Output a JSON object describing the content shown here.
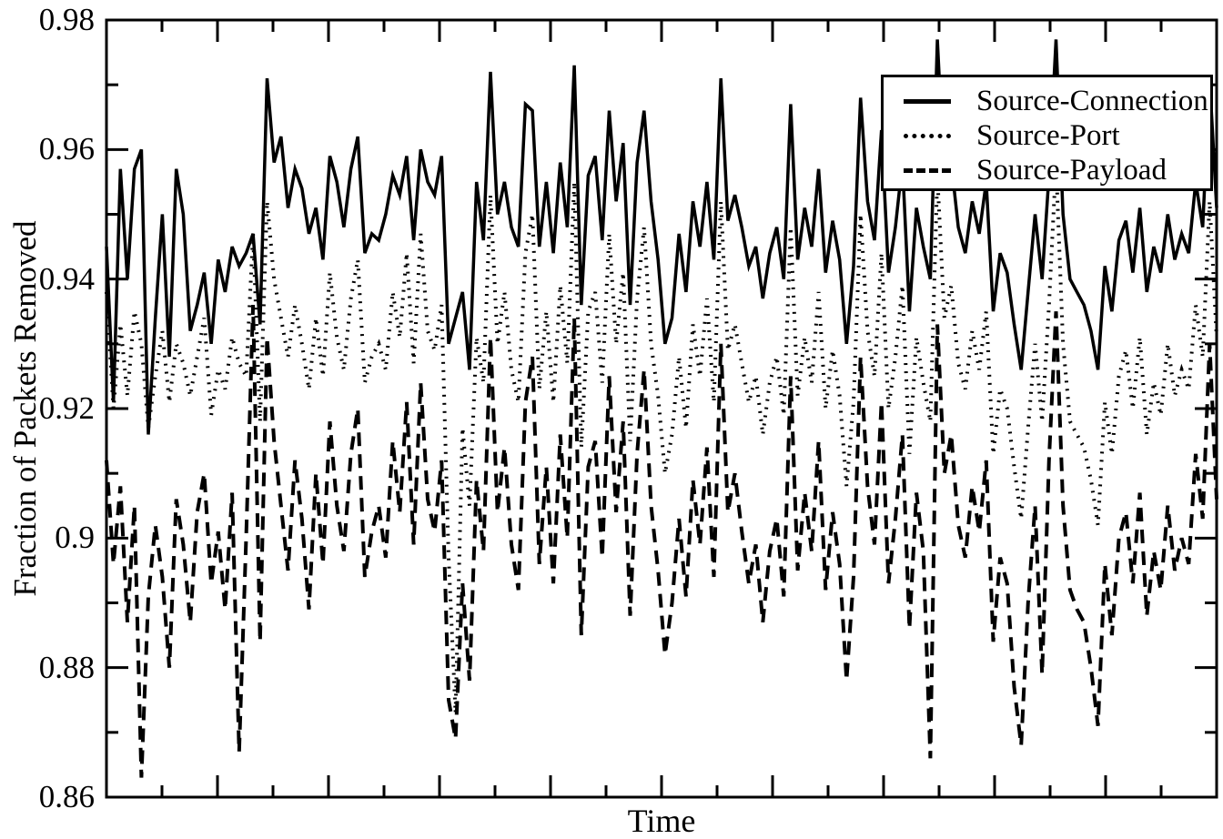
{
  "figure": {
    "background": "#ffffff",
    "ink": "#000000"
  },
  "axes": {
    "y_label": "Fraction of Packets Removed",
    "x_label": "Time",
    "y_tick_labels": [
      "0.98",
      "0.96",
      "0.94",
      "0.92",
      "0.9",
      "0.88",
      "0.86"
    ],
    "y_tick_values": [
      0.98,
      0.96,
      0.94,
      0.92,
      0.9,
      0.88,
      0.86
    ]
  },
  "legend": {
    "entries": [
      {
        "label": "Source-Connection",
        "style": "solid"
      },
      {
        "label": "Source-Port",
        "style": "dotted"
      },
      {
        "label": "Source-Payload",
        "style": "dashed"
      }
    ]
  },
  "chart_data": {
    "type": "line",
    "title": "",
    "xlabel": "Time",
    "ylabel": "Fraction of Packets Removed",
    "ylim": [
      0.86,
      0.98
    ],
    "y_major_ticks": [
      0.86,
      0.88,
      0.9,
      0.92,
      0.94,
      0.96,
      0.98
    ],
    "y_minor_ticks": [
      0.87,
      0.89,
      0.91,
      0.93,
      0.95,
      0.97
    ],
    "x_tick_count": 19,
    "x_tick_labels_visible": false,
    "grid": false,
    "legend_position": "top-right",
    "line_color": "#000000",
    "series": [
      {
        "name": "Source-Connection",
        "line_style": "solid",
        "values": [
          0.945,
          0.921,
          0.957,
          0.94,
          0.957,
          0.96,
          0.916,
          0.934,
          0.95,
          0.928,
          0.957,
          0.95,
          0.932,
          0.936,
          0.941,
          0.93,
          0.943,
          0.938,
          0.945,
          0.942,
          0.944,
          0.947,
          0.933,
          0.971,
          0.958,
          0.962,
          0.951,
          0.957,
          0.954,
          0.947,
          0.951,
          0.943,
          0.959,
          0.955,
          0.948,
          0.957,
          0.962,
          0.944,
          0.947,
          0.946,
          0.95,
          0.956,
          0.953,
          0.959,
          0.946,
          0.96,
          0.955,
          0.953,
          0.959,
          0.93,
          0.934,
          0.938,
          0.926,
          0.955,
          0.946,
          0.972,
          0.95,
          0.955,
          0.948,
          0.945,
          0.967,
          0.966,
          0.945,
          0.955,
          0.944,
          0.958,
          0.948,
          0.973,
          0.936,
          0.956,
          0.959,
          0.946,
          0.966,
          0.952,
          0.961,
          0.936,
          0.958,
          0.966,
          0.952,
          0.943,
          0.93,
          0.934,
          0.947,
          0.938,
          0.952,
          0.945,
          0.955,
          0.943,
          0.971,
          0.949,
          0.953,
          0.948,
          0.942,
          0.945,
          0.937,
          0.944,
          0.948,
          0.94,
          0.967,
          0.943,
          0.951,
          0.945,
          0.957,
          0.941,
          0.949,
          0.943,
          0.93,
          0.942,
          0.968,
          0.952,
          0.946,
          0.963,
          0.941,
          0.948,
          0.958,
          0.935,
          0.951,
          0.945,
          0.94,
          0.977,
          0.955,
          0.958,
          0.948,
          0.944,
          0.952,
          0.947,
          0.955,
          0.935,
          0.944,
          0.941,
          0.933,
          0.926,
          0.938,
          0.95,
          0.94,
          0.956,
          0.977,
          0.95,
          0.94,
          0.938,
          0.936,
          0.932,
          0.926,
          0.942,
          0.935,
          0.946,
          0.949,
          0.941,
          0.951,
          0.938,
          0.945,
          0.941,
          0.95,
          0.943,
          0.947,
          0.944,
          0.955,
          0.948,
          0.971,
          0.951
        ]
      },
      {
        "name": "Source-Port",
        "line_style": "dotted",
        "values": [
          0.938,
          0.92,
          0.933,
          0.922,
          0.935,
          0.93,
          0.917,
          0.925,
          0.932,
          0.921,
          0.93,
          0.927,
          0.922,
          0.928,
          0.934,
          0.919,
          0.926,
          0.923,
          0.931,
          0.927,
          0.925,
          0.947,
          0.918,
          0.952,
          0.94,
          0.934,
          0.928,
          0.936,
          0.93,
          0.923,
          0.934,
          0.925,
          0.941,
          0.931,
          0.926,
          0.937,
          0.943,
          0.924,
          0.928,
          0.93,
          0.926,
          0.938,
          0.931,
          0.944,
          0.927,
          0.947,
          0.932,
          0.929,
          0.936,
          0.897,
          0.873,
          0.917,
          0.905,
          0.931,
          0.924,
          0.953,
          0.93,
          0.938,
          0.926,
          0.921,
          0.944,
          0.95,
          0.923,
          0.935,
          0.921,
          0.939,
          0.927,
          0.955,
          0.914,
          0.935,
          0.938,
          0.924,
          0.947,
          0.93,
          0.941,
          0.915,
          0.937,
          0.948,
          0.93,
          0.922,
          0.91,
          0.916,
          0.928,
          0.917,
          0.933,
          0.925,
          0.937,
          0.921,
          0.952,
          0.929,
          0.933,
          0.927,
          0.921,
          0.925,
          0.916,
          0.924,
          0.928,
          0.919,
          0.948,
          0.922,
          0.931,
          0.924,
          0.938,
          0.92,
          0.929,
          0.922,
          0.908,
          0.921,
          0.95,
          0.932,
          0.925,
          0.944,
          0.92,
          0.928,
          0.939,
          0.913,
          0.931,
          0.924,
          0.918,
          0.956,
          0.934,
          0.939,
          0.927,
          0.923,
          0.932,
          0.926,
          0.935,
          0.913,
          0.923,
          0.92,
          0.911,
          0.903,
          0.917,
          0.93,
          0.918,
          0.936,
          0.958,
          0.93,
          0.918,
          0.916,
          0.914,
          0.909,
          0.902,
          0.921,
          0.913,
          0.925,
          0.929,
          0.92,
          0.931,
          0.916,
          0.924,
          0.919,
          0.93,
          0.922,
          0.926,
          0.923,
          0.936,
          0.928,
          0.952,
          0.931
        ]
      },
      {
        "name": "Source-Payload",
        "line_style": "dashed",
        "values": [
          0.912,
          0.896,
          0.908,
          0.887,
          0.905,
          0.863,
          0.891,
          0.902,
          0.894,
          0.88,
          0.906,
          0.899,
          0.887,
          0.904,
          0.91,
          0.893,
          0.901,
          0.889,
          0.907,
          0.867,
          0.9,
          0.936,
          0.884,
          0.931,
          0.915,
          0.905,
          0.895,
          0.912,
          0.903,
          0.889,
          0.91,
          0.896,
          0.918,
          0.905,
          0.898,
          0.913,
          0.92,
          0.894,
          0.901,
          0.905,
          0.897,
          0.915,
          0.904,
          0.921,
          0.899,
          0.924,
          0.906,
          0.901,
          0.912,
          0.875,
          0.869,
          0.893,
          0.878,
          0.909,
          0.898,
          0.931,
          0.904,
          0.914,
          0.899,
          0.892,
          0.921,
          0.928,
          0.896,
          0.911,
          0.893,
          0.916,
          0.9,
          0.934,
          0.885,
          0.911,
          0.915,
          0.897,
          0.925,
          0.904,
          0.918,
          0.888,
          0.913,
          0.926,
          0.905,
          0.895,
          0.882,
          0.89,
          0.903,
          0.891,
          0.909,
          0.899,
          0.914,
          0.894,
          0.93,
          0.904,
          0.91,
          0.901,
          0.893,
          0.899,
          0.887,
          0.898,
          0.903,
          0.891,
          0.925,
          0.895,
          0.907,
          0.898,
          0.915,
          0.892,
          0.904,
          0.896,
          0.878,
          0.894,
          0.928,
          0.908,
          0.899,
          0.921,
          0.893,
          0.903,
          0.916,
          0.886,
          0.907,
          0.898,
          0.866,
          0.933,
          0.91,
          0.916,
          0.902,
          0.897,
          0.908,
          0.901,
          0.912,
          0.884,
          0.897,
          0.893,
          0.877,
          0.868,
          0.89,
          0.905,
          0.879,
          0.912,
          0.935,
          0.905,
          0.892,
          0.889,
          0.887,
          0.88,
          0.871,
          0.896,
          0.885,
          0.9,
          0.904,
          0.893,
          0.907,
          0.888,
          0.898,
          0.892,
          0.905,
          0.895,
          0.9,
          0.896,
          0.913,
          0.903,
          0.93,
          0.906
        ]
      }
    ]
  }
}
